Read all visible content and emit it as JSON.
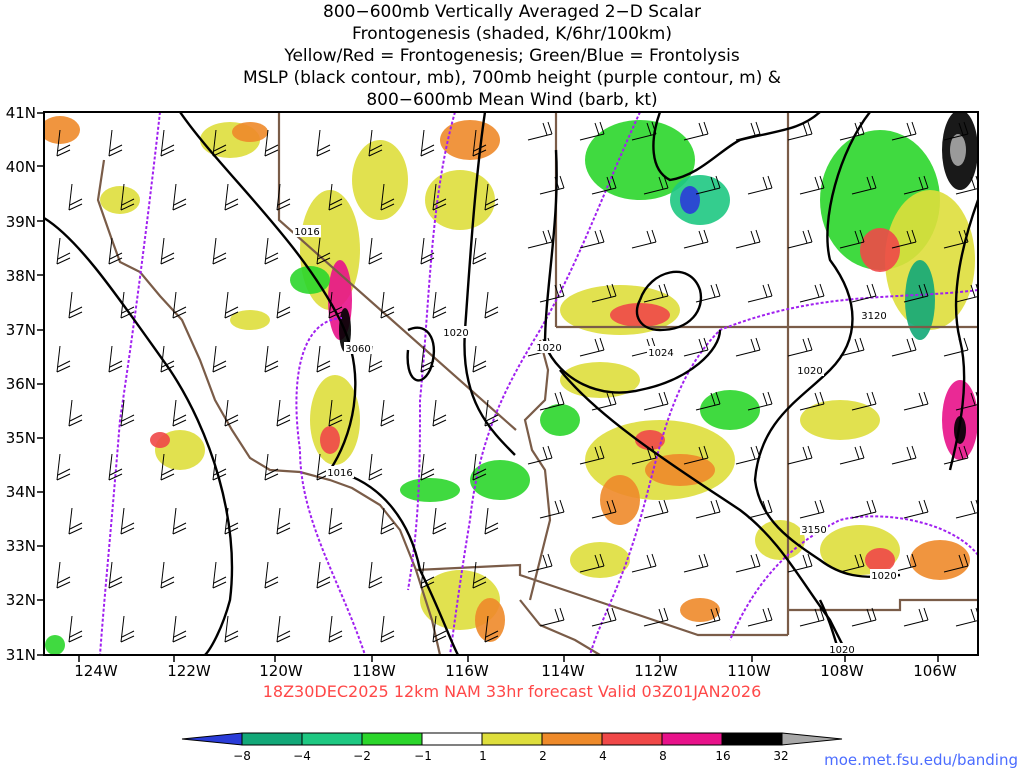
{
  "title": {
    "lines": [
      "800−600mb Vertically Averaged 2−D Scalar",
      "Frontogenesis (shaded, K/6hr/100km)",
      "Yellow/Red = Frontogenesis;  Green/Blue = Frontolysis",
      "MSLP (black contour, mb), 700mb height (purple contour, m) &",
      "800−600mb Mean Wind (barb, kt)"
    ]
  },
  "axes": {
    "x_ticks": [
      "124W",
      "122W",
      "120W",
      "118W",
      "116W",
      "114W",
      "112W",
      "110W",
      "108W",
      "106W"
    ],
    "y_ticks": [
      "41N",
      "40N",
      "39N",
      "38N",
      "37N",
      "36N",
      "35N",
      "34N",
      "33N",
      "32N",
      "31N"
    ]
  },
  "contour_labels": {
    "mslp": [
      "1016",
      "1020",
      "1020",
      "1024",
      "1016",
      "1020",
      "1020",
      "1020"
    ],
    "height": [
      "3060",
      "3120",
      "3150"
    ]
  },
  "valid": "18Z30DEC2025  12km NAM 33hr forecast Valid 03Z01JAN2026",
  "colorbar": {
    "labels": [
      "−8",
      "−4",
      "−2",
      "−1",
      "1",
      "2",
      "4",
      "8",
      "16",
      "32"
    ],
    "colors": [
      "#2a3cd8",
      "#12a878",
      "#1ec882",
      "#2bd62b",
      "#ffffff",
      "#dede3c",
      "#ee8a2a",
      "#f04848",
      "#e8128a",
      "#000000",
      "#a8a8a8"
    ]
  },
  "credit": "moe.met.fsu.edu/banding",
  "colors": {
    "mslp_contour": "#000000",
    "height_contour": "#a020f0",
    "border": "#7a5c48",
    "valid_text": "#ff4848",
    "credit_text": "#4b6cff"
  }
}
